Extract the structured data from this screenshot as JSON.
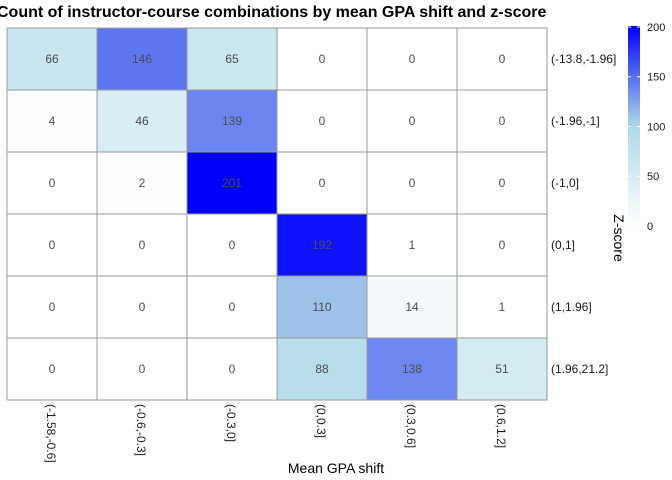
{
  "chart_data": {
    "type": "heatmap",
    "title": "Count of instructor-course combinations by mean GPA shift and z-score",
    "xlabel": "Mean GPA shift",
    "ylabel": "",
    "x_categories": [
      "(-1.58,-0.6]",
      "(-0.6,-0.3]",
      "(-0.3,0]",
      "(0,0.3]",
      "(0.3,0.6]",
      "(0.6,1.2]"
    ],
    "y_categories": [
      "(-13.8,-1.96]",
      "(-1.96,-1]",
      "(-1,0]",
      "(0,1]",
      "(1,1.96]",
      "(1.96,21.2]"
    ],
    "values": [
      [
        66,
        146,
        65,
        0,
        0,
        0
      ],
      [
        4,
        46,
        139,
        0,
        0,
        0
      ],
      [
        0,
        2,
        201,
        0,
        0,
        0
      ],
      [
        0,
        0,
        0,
        192,
        1,
        0
      ],
      [
        0,
        0,
        0,
        110,
        14,
        1
      ],
      [
        0,
        0,
        0,
        88,
        138,
        51
      ]
    ],
    "legend": {
      "title": "Z-score",
      "ticks": [
        0,
        50,
        100,
        150,
        200
      ],
      "range": [
        0,
        201
      ],
      "colors": [
        "#ffffff",
        "#add8e6",
        "#0000ff"
      ]
    },
    "grid": false,
    "legend_position": "right"
  }
}
